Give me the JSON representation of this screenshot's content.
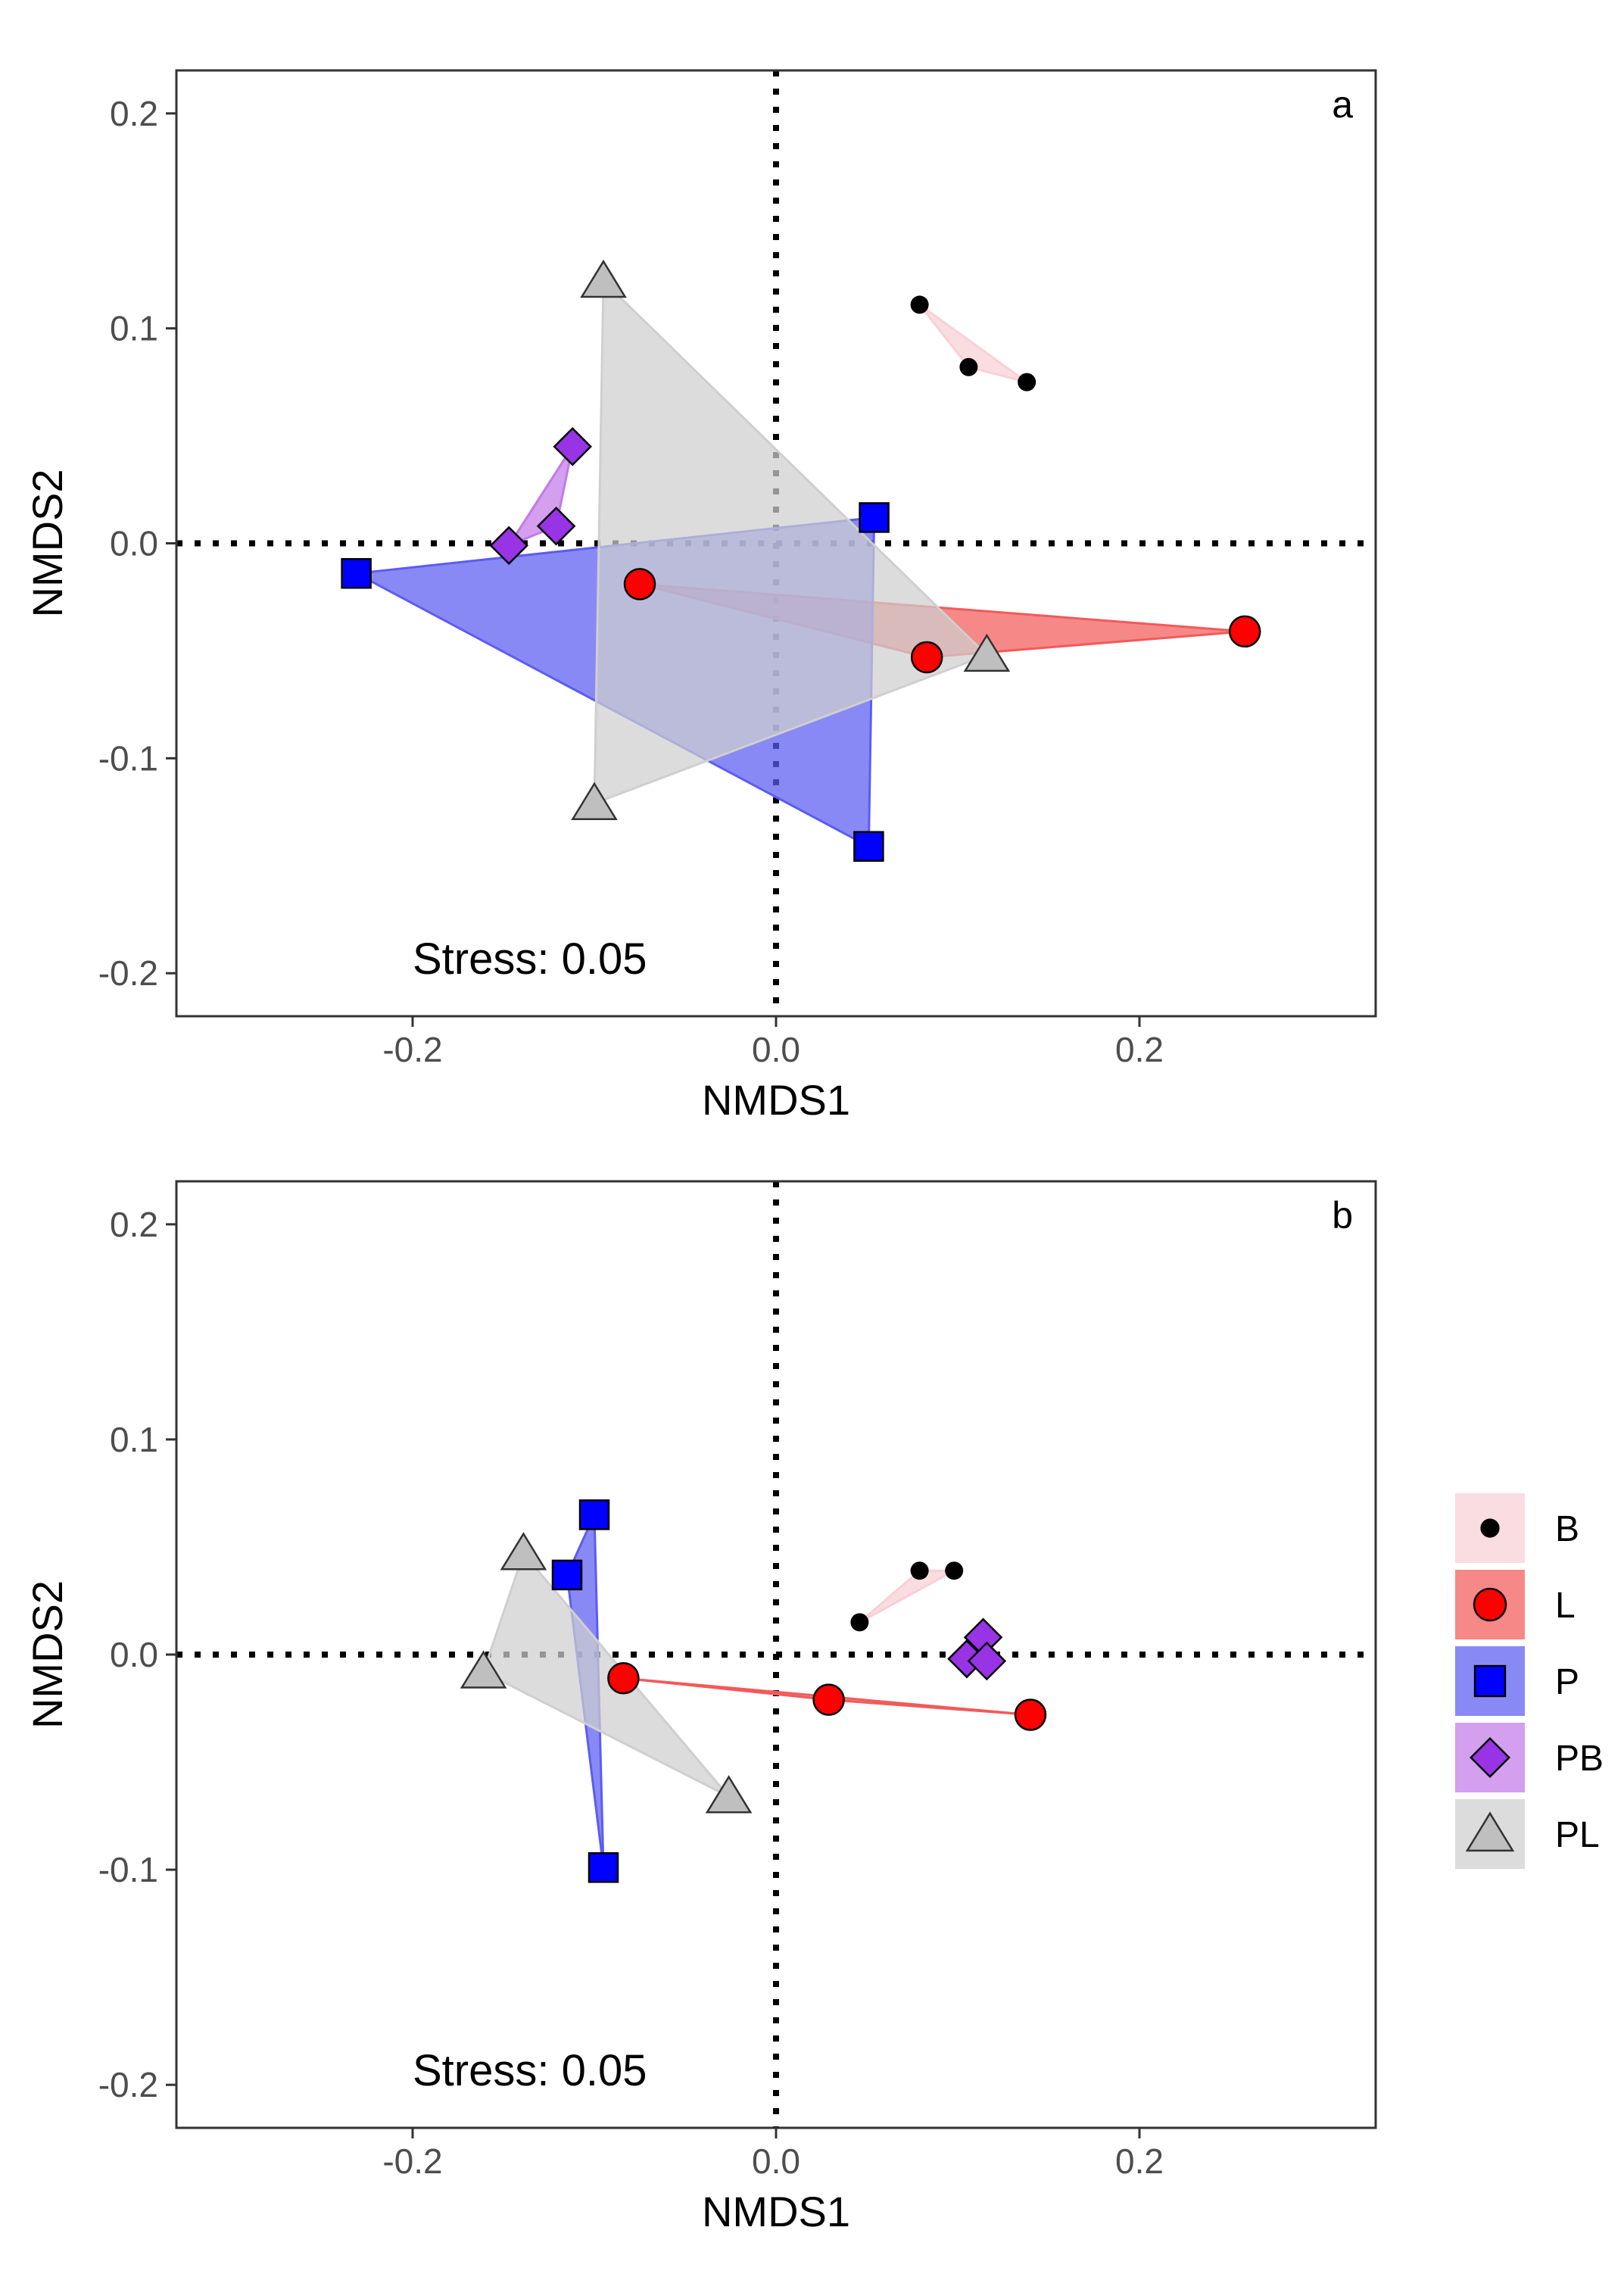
{
  "chart_data": [
    {
      "type": "scatter",
      "panel": "a",
      "xlabel": "NMDS1",
      "ylabel": "NMDS2",
      "xlim": [
        -0.33,
        0.33
      ],
      "ylim": [
        -0.22,
        0.22
      ],
      "xticks": [
        -0.2,
        0.0,
        0.2
      ],
      "yticks": [
        -0.2,
        -0.1,
        0.0,
        0.1,
        0.2
      ],
      "xtick_labels": [
        "-0.2",
        "0.0",
        "0.2"
      ],
      "ytick_labels": [
        "-0.2",
        "-0.1",
        "0.0",
        "0.1",
        "0.2"
      ],
      "annotation": "Stress: 0.05",
      "reference_lines": {
        "x": 0,
        "y": 0,
        "style": "dotted"
      },
      "series": [
        {
          "name": "B",
          "points": [
            [
              0.079,
              0.111
            ],
            [
              0.106,
              0.082
            ],
            [
              0.138,
              0.075
            ]
          ]
        },
        {
          "name": "L",
          "points": [
            [
              -0.075,
              -0.019
            ],
            [
              0.083,
              -0.053
            ],
            [
              0.258,
              -0.041
            ]
          ]
        },
        {
          "name": "P",
          "points": [
            [
              -0.231,
              -0.014
            ],
            [
              0.054,
              0.012
            ],
            [
              0.051,
              -0.141
            ]
          ]
        },
        {
          "name": "PB",
          "points": [
            [
              -0.112,
              0.045
            ],
            [
              -0.121,
              0.008
            ],
            [
              -0.147,
              -0.001
            ]
          ]
        },
        {
          "name": "PL",
          "points": [
            [
              -0.095,
              0.122
            ],
            [
              0.116,
              -0.052
            ],
            [
              -0.1,
              -0.121
            ]
          ]
        }
      ]
    },
    {
      "type": "scatter",
      "panel": "b",
      "xlabel": "NMDS1",
      "ylabel": "NMDS2",
      "xlim": [
        -0.33,
        0.33
      ],
      "ylim": [
        -0.22,
        0.22
      ],
      "xticks": [
        -0.2,
        0.0,
        0.2
      ],
      "yticks": [
        -0.2,
        -0.1,
        0.0,
        0.1,
        0.2
      ],
      "xtick_labels": [
        "-0.2",
        "0.0",
        "0.2"
      ],
      "ytick_labels": [
        "-0.2",
        "-0.1",
        "0.0",
        "0.1",
        "0.2"
      ],
      "annotation": "Stress: 0.05",
      "reference_lines": {
        "x": 0,
        "y": 0,
        "style": "dotted"
      },
      "series": [
        {
          "name": "B",
          "points": [
            [
              0.046,
              0.015
            ],
            [
              0.079,
              0.039
            ],
            [
              0.098,
              0.039
            ]
          ]
        },
        {
          "name": "L",
          "points": [
            [
              -0.084,
              -0.011
            ],
            [
              0.029,
              -0.021
            ],
            [
              0.14,
              -0.028
            ]
          ]
        },
        {
          "name": "P",
          "points": [
            [
              -0.1,
              0.065
            ],
            [
              -0.115,
              0.037
            ],
            [
              -0.095,
              -0.099
            ]
          ]
        },
        {
          "name": "PB",
          "points": [
            [
              0.114,
              0.008
            ],
            [
              0.105,
              -0.002
            ],
            [
              0.116,
              -0.003
            ]
          ]
        },
        {
          "name": "PL",
          "points": [
            [
              -0.139,
              0.047
            ],
            [
              -0.161,
              -0.008
            ],
            [
              -0.026,
              -0.066
            ]
          ]
        }
      ]
    }
  ],
  "legend": {
    "position": "right",
    "items": [
      {
        "label": "B",
        "shape": "circle-small"
      },
      {
        "label": "L",
        "shape": "circle"
      },
      {
        "label": "P",
        "shape": "square"
      },
      {
        "label": "PB",
        "shape": "diamond"
      },
      {
        "label": "PL",
        "shape": "triangle"
      }
    ]
  },
  "colors": {
    "B": {
      "fill": "#000000",
      "hull": "#f8d0d6"
    },
    "L": {
      "fill": "#ff0000",
      "hull": "#f25a5a"
    },
    "P": {
      "fill": "#0000ff",
      "hull": "#5c5cf2"
    },
    "PB": {
      "fill": "#9933e6",
      "hull": "#c27ae8"
    },
    "PL": {
      "fill": "#bfbfbf",
      "hull": "#cfcfcf"
    }
  }
}
